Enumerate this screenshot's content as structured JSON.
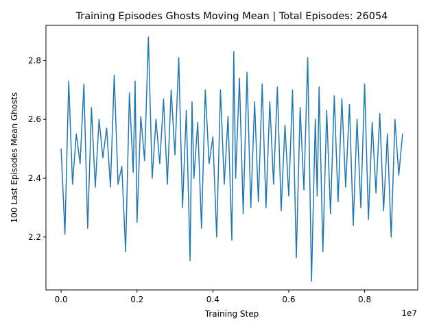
{
  "chart_data": {
    "type": "line",
    "title": "Training Episodes Ghosts Moving Mean | Total Episodes: 26054",
    "xlabel": "Training Step",
    "ylabel": "100 Last Episodes Mean Ghosts",
    "x_offset_label": "1e7",
    "xlim": [
      -0.04,
      0.94
    ],
    "ylim": [
      2.02,
      2.92
    ],
    "x_ticks": [
      0.0,
      0.2,
      0.4,
      0.6,
      0.8
    ],
    "x_tick_labels": [
      "0.0",
      "0.2",
      "0.4",
      "0.6",
      "0.8"
    ],
    "y_ticks": [
      2.2,
      2.4,
      2.6,
      2.8
    ],
    "y_tick_labels": [
      "2.2",
      "2.4",
      "2.6",
      "2.8"
    ],
    "grid": false,
    "series": [
      {
        "color": "#1f77b4",
        "x": [
          0.0,
          0.01,
          0.02,
          0.03,
          0.04,
          0.05,
          0.06,
          0.07,
          0.08,
          0.09,
          0.1,
          0.11,
          0.12,
          0.13,
          0.14,
          0.15,
          0.16,
          0.17,
          0.18,
          0.19,
          0.195,
          0.2,
          0.21,
          0.22,
          0.23,
          0.24,
          0.25,
          0.26,
          0.27,
          0.28,
          0.29,
          0.3,
          0.31,
          0.32,
          0.33,
          0.34,
          0.345,
          0.35,
          0.36,
          0.37,
          0.38,
          0.39,
          0.4,
          0.41,
          0.42,
          0.43,
          0.44,
          0.45,
          0.455,
          0.46,
          0.47,
          0.48,
          0.49,
          0.5,
          0.51,
          0.52,
          0.53,
          0.54,
          0.55,
          0.56,
          0.57,
          0.58,
          0.59,
          0.6,
          0.61,
          0.62,
          0.63,
          0.64,
          0.65,
          0.66,
          0.67,
          0.675,
          0.68,
          0.69,
          0.7,
          0.71,
          0.72,
          0.73,
          0.74,
          0.75,
          0.76,
          0.77,
          0.78,
          0.79,
          0.8,
          0.81,
          0.82,
          0.83,
          0.84,
          0.85,
          0.86,
          0.87,
          0.88,
          0.89,
          0.9
        ],
        "y": [
          2.5,
          2.21,
          2.73,
          2.38,
          2.55,
          2.45,
          2.72,
          2.23,
          2.64,
          2.37,
          2.6,
          2.47,
          2.57,
          2.37,
          2.75,
          2.38,
          2.44,
          2.15,
          2.69,
          2.42,
          2.73,
          2.25,
          2.61,
          2.46,
          2.88,
          2.4,
          2.6,
          2.45,
          2.67,
          2.38,
          2.7,
          2.48,
          2.81,
          2.3,
          2.63,
          2.12,
          2.66,
          2.4,
          2.59,
          2.23,
          2.7,
          2.45,
          2.54,
          2.2,
          2.7,
          2.38,
          2.61,
          2.19,
          2.83,
          2.4,
          2.74,
          2.28,
          2.76,
          2.3,
          2.66,
          2.32,
          2.72,
          2.3,
          2.66,
          2.38,
          2.71,
          2.29,
          2.58,
          2.34,
          2.7,
          2.13,
          2.64,
          2.36,
          2.81,
          2.05,
          2.6,
          2.34,
          2.71,
          2.15,
          2.63,
          2.28,
          2.68,
          2.32,
          2.67,
          2.37,
          2.65,
          2.24,
          2.6,
          2.3,
          2.72,
          2.26,
          2.59,
          2.35,
          2.62,
          2.29,
          2.55,
          2.2,
          2.6,
          2.41,
          2.55
        ]
      }
    ]
  }
}
